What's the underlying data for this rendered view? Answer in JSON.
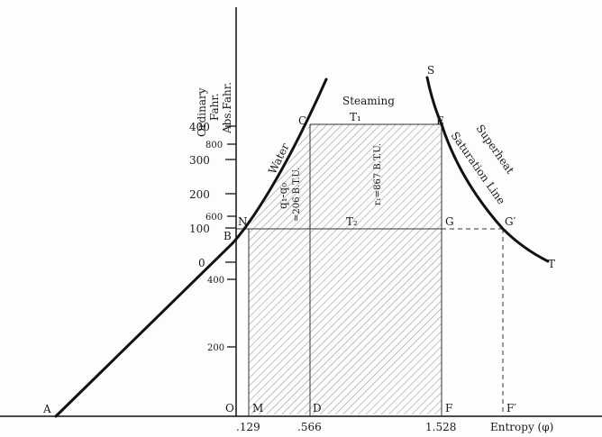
{
  "axis": {
    "y_header_1": "Ordinary",
    "y_header_2": "Fahr.",
    "y_header_3": "Abs.Fahr.",
    "x_label": "Entropy (φ)"
  },
  "ordinary_ticks": [
    "400",
    "300",
    "200",
    "100",
    "0"
  ],
  "absolute_ticks": [
    "800",
    "600",
    "400",
    "200"
  ],
  "entropy_ticks": [
    ".129",
    ".566",
    "1.528"
  ],
  "points": {
    "A": "A",
    "B": "B",
    "N": "N",
    "C": "C",
    "E": "E",
    "G": "G",
    "G2": "G′",
    "S": "S",
    "T": "T",
    "O": "O",
    "M": "M",
    "D": "D",
    "F": "F",
    "F2": "F′",
    "T1": "T₁",
    "T2": "T₂"
  },
  "regions": {
    "steaming": "Steaming",
    "water": "Water",
    "superheat": "Superheat",
    "saturation_line": "Saturation Line",
    "water_heat": "q₁-q₀",
    "water_heat_value": "=206 B.T.U.",
    "latent_heat": "r₁=867 B.T.U."
  },
  "colors": {
    "curve": "#111111",
    "hatch": "#9a9a9a",
    "paper": "#fdfdfb"
  }
}
